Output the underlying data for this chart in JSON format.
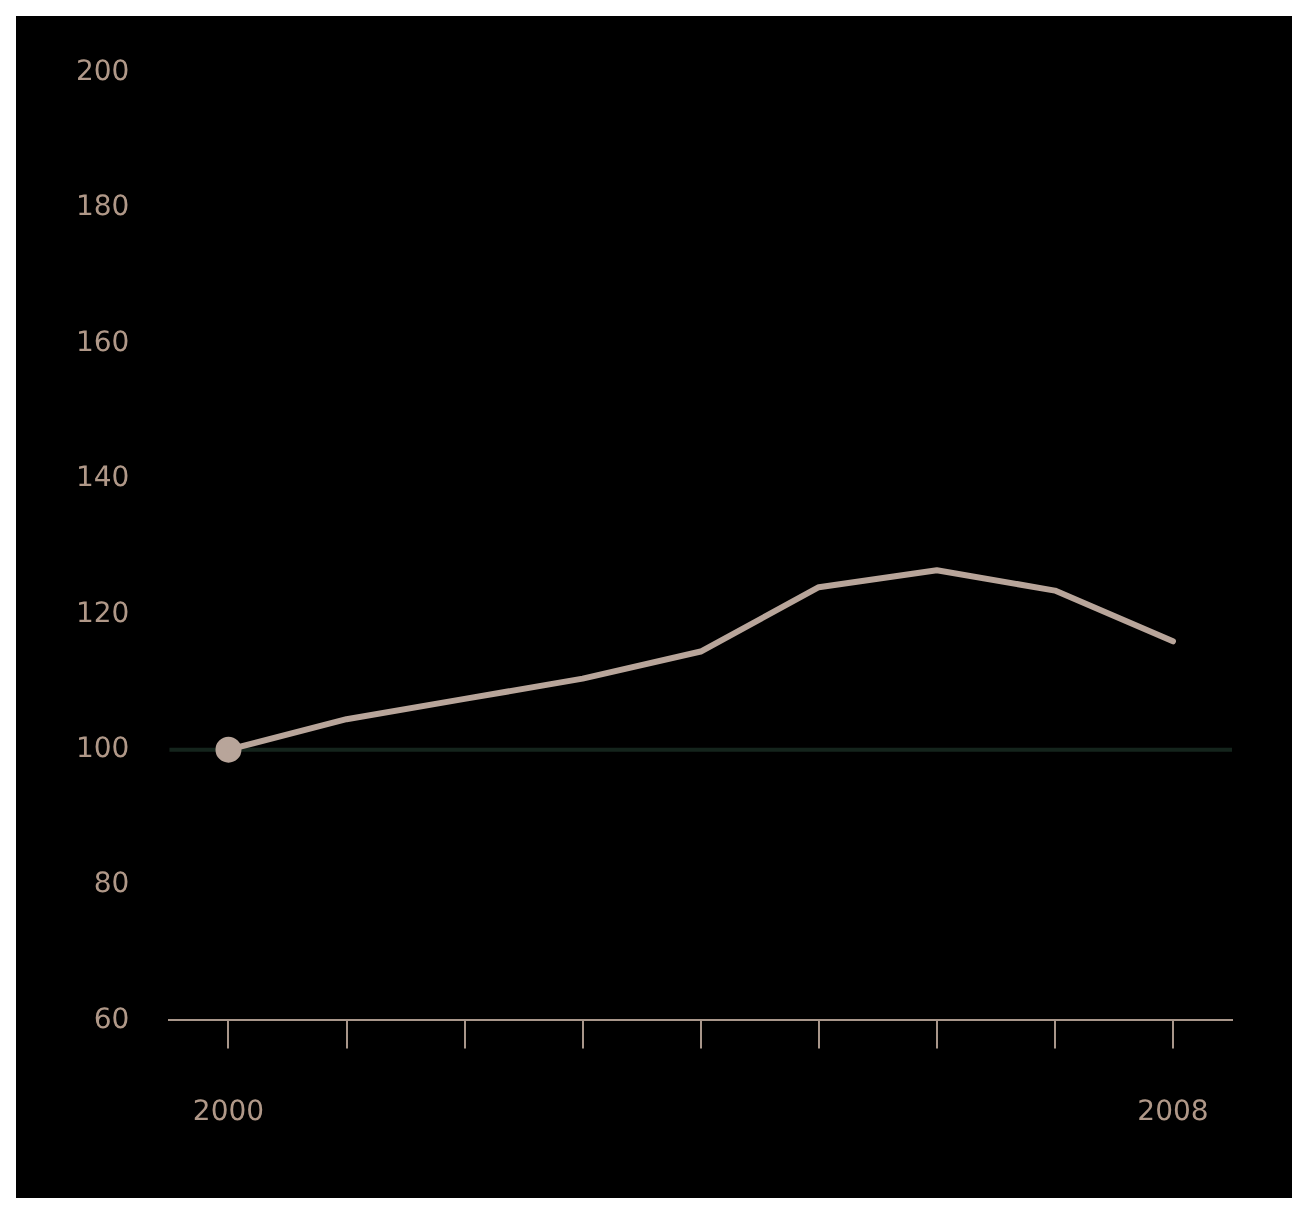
{
  "chart_data": {
    "type": "line",
    "x": [
      2000,
      2001,
      2002,
      2003,
      2004,
      2005,
      2006,
      2007,
      2008
    ],
    "series": [
      {
        "color": "#b8a59a",
        "values": [
          100,
          104.5,
          107.5,
          110.5,
          114.5,
          124,
          126.5,
          123.5,
          116
        ],
        "marker": "none"
      },
      {
        "type": "scatter",
        "color": "#b8a59a",
        "x": [
          2000
        ],
        "values": [
          100
        ],
        "marker": "circle"
      }
    ],
    "xlim": [
      1999.5,
      2008.5
    ],
    "xticks": [
      2000,
      {
        "value": 2001,
        "label": null
      },
      {
        "value": 2002,
        "label": null
      },
      {
        "value": 2003,
        "label": null
      },
      {
        "value": 2004,
        "label": null
      },
      {
        "value": 2005,
        "label": null
      },
      {
        "value": 2006,
        "label": null
      },
      {
        "value": 2007,
        "label": null
      },
      2008
    ],
    "ylim": [
      60,
      200
    ],
    "yticks": [
      60,
      80,
      100,
      120,
      140,
      160,
      180,
      200
    ],
    "ref_lines": [
      {
        "axis": "y",
        "value": 100,
        "color": "#14241c"
      }
    ],
    "grid": false,
    "legend": false
  }
}
